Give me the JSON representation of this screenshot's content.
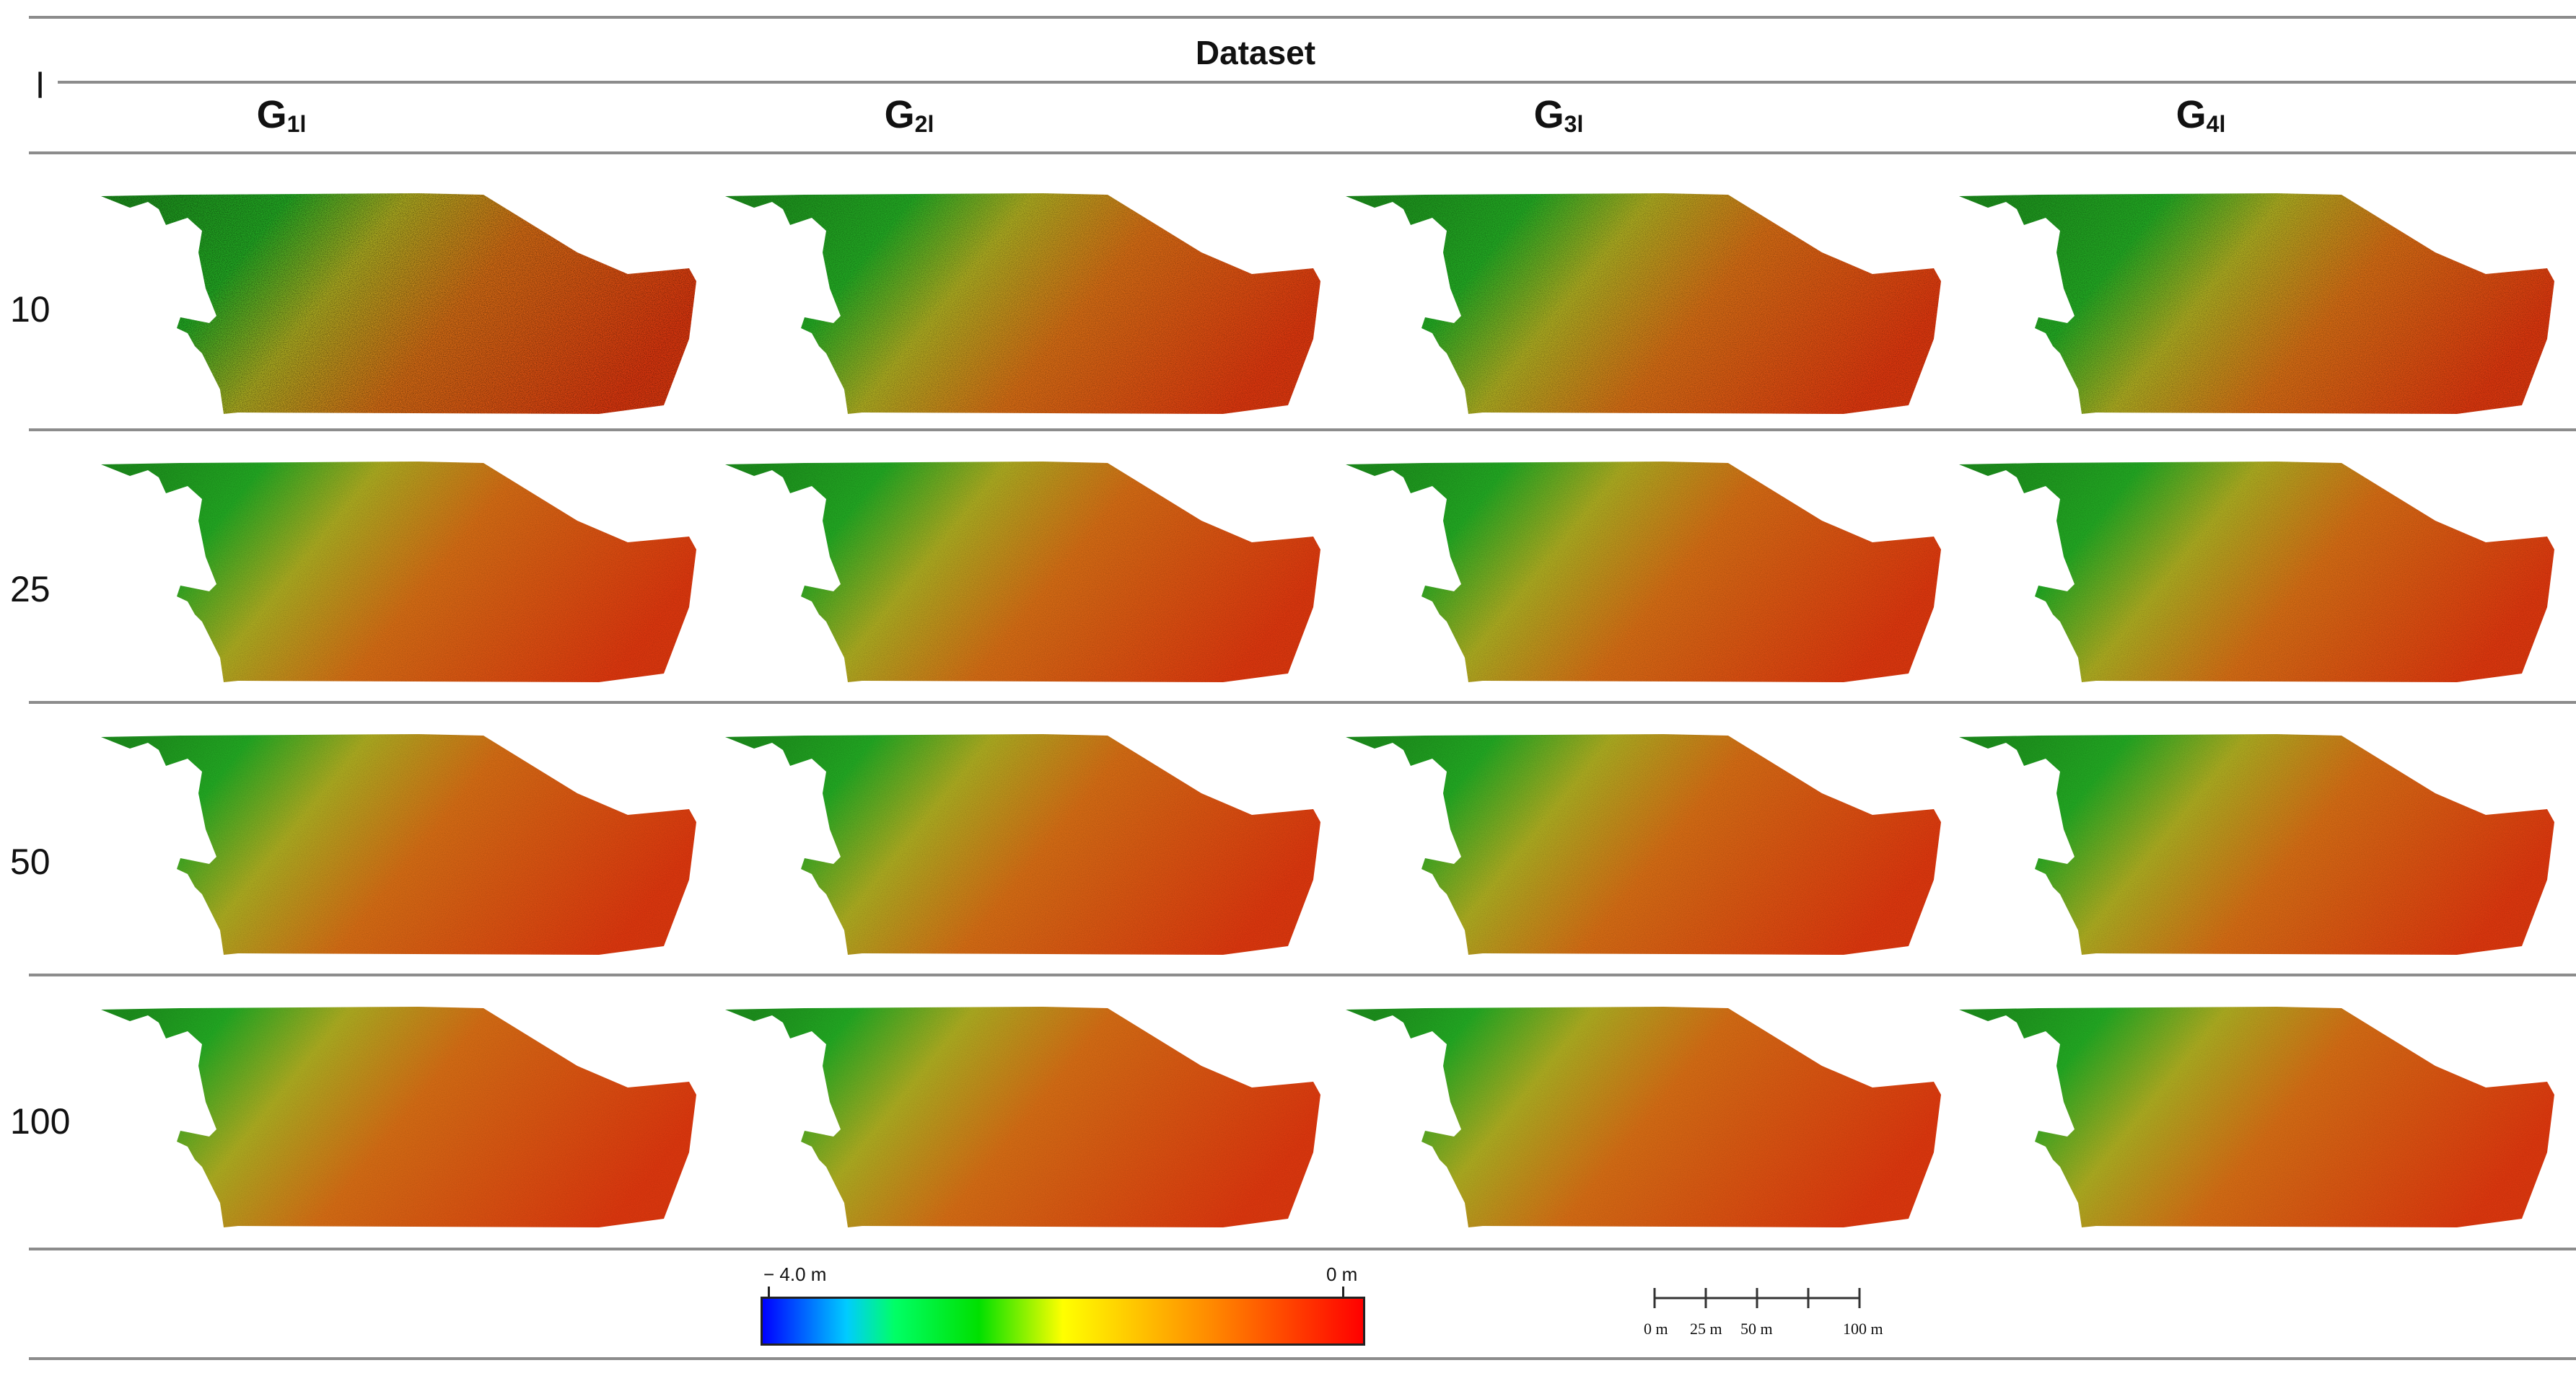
{
  "header": {
    "dataset_label": "Dataset",
    "param_label": "l",
    "columns": [
      {
        "base": "G",
        "sub": "1l"
      },
      {
        "base": "G",
        "sub": "2l"
      },
      {
        "base": "G",
        "sub": "3l"
      },
      {
        "base": "G",
        "sub": "4l"
      }
    ]
  },
  "rows": [
    {
      "label": "10"
    },
    {
      "label": "25"
    },
    {
      "label": "50"
    },
    {
      "label": "100"
    }
  ],
  "legend": {
    "min_label": "− 4.0 m",
    "max_label": "0 m",
    "colors": [
      "#0000ff",
      "#00ffff",
      "#00ff00",
      "#00dd00",
      "#ffff00",
      "#ff8800",
      "#ff0000"
    ]
  },
  "scale_bar": {
    "labels": [
      "0 m",
      "25 m",
      "50 m",
      "100 m"
    ]
  }
}
